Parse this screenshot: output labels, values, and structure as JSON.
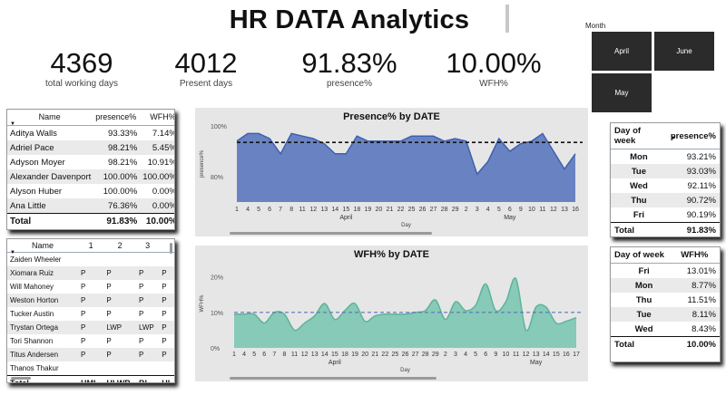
{
  "page": {
    "title": "HR DATA Analytics"
  },
  "kpis": [
    {
      "value": "4369",
      "label": "total working days"
    },
    {
      "value": "4012",
      "label": "Present days"
    },
    {
      "value": "91.83%",
      "label": "presence%"
    },
    {
      "value": "10.00%",
      "label": "WFH%"
    }
  ],
  "slicer": {
    "label": "Month",
    "tiles": [
      "April",
      "June",
      "May"
    ]
  },
  "employee_table": {
    "headers": [
      "Name",
      "presence%",
      "WFH%"
    ],
    "rows": [
      [
        "Aditya Walls",
        "93.33%",
        "7.14%"
      ],
      [
        "Adriel Pace",
        "98.21%",
        "5.45%"
      ],
      [
        "Adyson Moyer",
        "98.21%",
        "10.91%"
      ],
      [
        "Alexander Davenport",
        "100.00%",
        "100.00%"
      ],
      [
        "Alyson Huber",
        "100.00%",
        "0.00%"
      ],
      [
        "Ana Little",
        "76.36%",
        "0.00%"
      ]
    ],
    "total": [
      "Total",
      "91.83%",
      "10.00%"
    ]
  },
  "attendance_table": {
    "headers": [
      "Name",
      "1",
      "2",
      "3"
    ],
    "rows": [
      [
        "Zaiden Wheeler",
        "",
        "",
        "",
        ""
      ],
      [
        "Xiomara Ruiz",
        "P",
        "P",
        "P",
        "P"
      ],
      [
        "Will Mahoney",
        "P",
        "P",
        "P",
        "P"
      ],
      [
        "Weston Horton",
        "P",
        "P",
        "P",
        "P"
      ],
      [
        "Tucker Austin",
        "P",
        "P",
        "P",
        "P"
      ],
      [
        "Trystan Ortega",
        "P",
        "LWP",
        "LWP",
        "P"
      ],
      [
        "Tori Shannon",
        "P",
        "P",
        "P",
        "P"
      ],
      [
        "Titus Andersen",
        "P",
        "P",
        "P",
        "P"
      ],
      [
        "Thanos Thakur",
        "",
        "",
        "",
        ""
      ]
    ],
    "total": [
      "Total",
      "HML",
      "HLWP",
      "BL",
      "HI"
    ]
  },
  "presence_by_day": {
    "headers": [
      "Day of week",
      "presence%"
    ],
    "rows": [
      [
        "Mon",
        "93.21%"
      ],
      [
        "Tue",
        "93.03%"
      ],
      [
        "Wed",
        "92.11%"
      ],
      [
        "Thu",
        "90.72%"
      ],
      [
        "Fri",
        "90.19%"
      ]
    ],
    "total": [
      "Total",
      "91.83%"
    ]
  },
  "wfh_by_day": {
    "headers": [
      "Day of week",
      "WFH%"
    ],
    "rows": [
      [
        "Fri",
        "13.01%"
      ],
      [
        "Mon",
        "8.77%"
      ],
      [
        "Thu",
        "11.51%"
      ],
      [
        "Tue",
        "8.11%"
      ],
      [
        "Wed",
        "8.43%"
      ]
    ],
    "total": [
      "Total",
      "10.00%"
    ]
  },
  "chart_data": [
    {
      "type": "area",
      "title": "Presence% by DATE",
      "xlabel": "Day",
      "ylabel": "presence%",
      "x": [
        "1",
        "4",
        "5",
        "6",
        "7",
        "8",
        "11",
        "12",
        "13",
        "14",
        "15",
        "18",
        "19",
        "20",
        "21",
        "22",
        "25",
        "26",
        "27",
        "28",
        "29",
        "2",
        "3",
        "4",
        "5",
        "6",
        "9",
        "10",
        "11",
        "12",
        "13",
        "16"
      ],
      "groups": [
        "April",
        "May"
      ],
      "yticks": [
        "100%",
        "80%"
      ],
      "ylim": [
        70,
        100
      ],
      "values": [
        94,
        97,
        97,
        95,
        89,
        97,
        96,
        95,
        93,
        89,
        89,
        96,
        94,
        94,
        94,
        94,
        96,
        96,
        96,
        94,
        95,
        94,
        81,
        86,
        95,
        90,
        93,
        94,
        97,
        90,
        83,
        89
      ],
      "reference_line": 93.5,
      "color": "#5b78be"
    },
    {
      "type": "area",
      "title": "WFH% by DATE",
      "xlabel": "Day",
      "ylabel": "WFH%",
      "x": [
        "1",
        "4",
        "5",
        "6",
        "7",
        "8",
        "11",
        "12",
        "13",
        "14",
        "15",
        "18",
        "19",
        "20",
        "21",
        "22",
        "25",
        "26",
        "27",
        "28",
        "29",
        "2",
        "3",
        "4",
        "5",
        "6",
        "9",
        "10",
        "11",
        "12",
        "13",
        "14",
        "15",
        "16",
        "17"
      ],
      "groups": [
        "April",
        "May"
      ],
      "yticks": [
        "20%",
        "10%",
        "0%"
      ],
      "ylim": [
        0,
        25
      ],
      "values": [
        9.5,
        9.5,
        9.5,
        7,
        10,
        9.5,
        5,
        7,
        9,
        12.5,
        8,
        10.5,
        12.5,
        7.5,
        9,
        9.5,
        9.5,
        9.5,
        10,
        10.5,
        13.5,
        8,
        13,
        10.5,
        12,
        18,
        10.5,
        13,
        19.5,
        5,
        11.5,
        11.5,
        7,
        7.5,
        8.5
      ],
      "reference_line": 10,
      "color": "#7cc7b1"
    }
  ]
}
